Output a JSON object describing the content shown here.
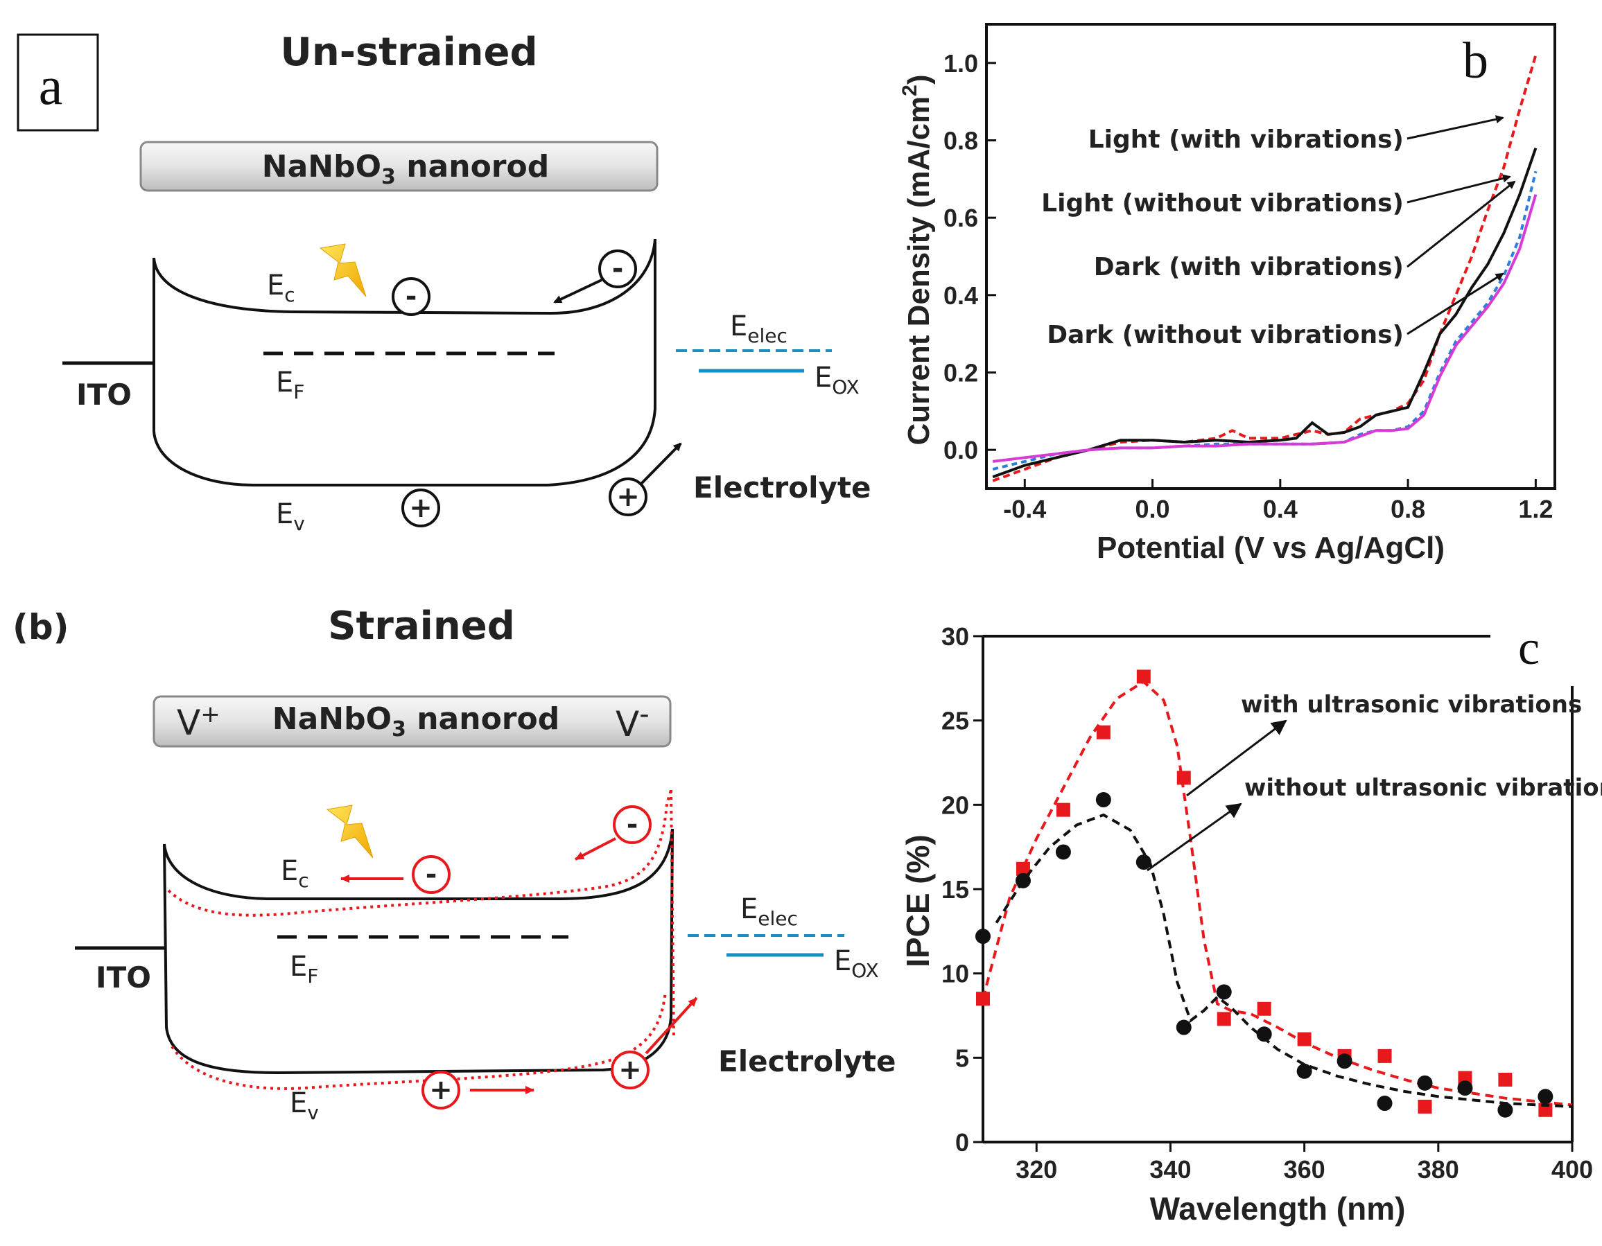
{
  "panel_a": {
    "letter": "a",
    "title": "Un-strained",
    "rod_label_pre": "NaNbO",
    "rod_label_sub": "3",
    "rod_label_post": " nanorod",
    "ito": "ITO",
    "ec": "E",
    "ec_sub": "c",
    "ef": "E",
    "ef_sub": "F",
    "ev": "E",
    "ev_sub": "v",
    "eelec": "E",
    "eelec_sub": "elec",
    "eox": "E",
    "eox_sub": "OX",
    "electrolyte": "Electrolyte",
    "minus": "-",
    "plus": "+"
  },
  "panel_bstrained": {
    "letter": "(b)",
    "title": "Strained",
    "v_plus": "V",
    "v_plus_sup": "+",
    "v_minus": "V",
    "v_minus_sup": "-",
    "rod_label_pre": "NaNbO",
    "rod_label_sub": "3",
    "rod_label_post": " nanorod",
    "ito": "ITO",
    "ec": "E",
    "ec_sub": "c",
    "ef": "E",
    "ef_sub": "F",
    "ev": "E",
    "ev_sub": "v",
    "eelec": "E",
    "eelec_sub": "elec",
    "eox": "E",
    "eox_sub": "OX",
    "electrolyte": "Electrolyte",
    "minus": "-",
    "plus": "+"
  },
  "chart_data": [
    {
      "id": "b",
      "letter": "b",
      "type": "line",
      "xlabel": "Potential (V vs Ag/AgCl)",
      "ylabel_pre": "Current Density (mA/cm",
      "ylabel_sup": "2",
      "ylabel_post": ")",
      "xlim": [
        -0.52,
        1.26
      ],
      "ylim": [
        -0.1,
        1.1
      ],
      "xticks": [
        -0.4,
        0.0,
        0.4,
        0.8,
        1.2
      ],
      "xtick_labels": [
        "-0.4",
        "0.0",
        "0.4",
        "0.8",
        "1.2"
      ],
      "yticks": [
        0.0,
        0.2,
        0.4,
        0.6,
        0.8,
        1.0
      ],
      "ytick_labels": [
        "0.0",
        "0.2",
        "0.4",
        "0.6",
        "0.8",
        "1.0"
      ],
      "series": [
        {
          "name": "Light (with vibrations)",
          "color": "#e8191c",
          "dash": "10,6",
          "x": [
            -0.5,
            -0.4,
            -0.3,
            -0.2,
            -0.1,
            0.0,
            0.1,
            0.2,
            0.25,
            0.3,
            0.35,
            0.4,
            0.45,
            0.5,
            0.55,
            0.6,
            0.65,
            0.7,
            0.75,
            0.8,
            0.85,
            0.9,
            0.95,
            1.0,
            1.05,
            1.1,
            1.15,
            1.2
          ],
          "y": [
            -0.08,
            -0.05,
            -0.02,
            0.0,
            0.02,
            0.025,
            0.02,
            0.03,
            0.05,
            0.03,
            0.03,
            0.03,
            0.04,
            0.05,
            0.04,
            0.045,
            0.08,
            0.09,
            0.1,
            0.12,
            0.18,
            0.3,
            0.4,
            0.5,
            0.62,
            0.73,
            0.88,
            1.02
          ]
        },
        {
          "name": "Light (without vibrations)",
          "color": "#111111",
          "dash": "",
          "x": [
            -0.5,
            -0.4,
            -0.3,
            -0.2,
            -0.1,
            0.0,
            0.1,
            0.2,
            0.3,
            0.4,
            0.45,
            0.5,
            0.55,
            0.6,
            0.65,
            0.7,
            0.75,
            0.8,
            0.85,
            0.9,
            0.95,
            1.0,
            1.05,
            1.1,
            1.15,
            1.2
          ],
          "y": [
            -0.07,
            -0.04,
            -0.02,
            0.0,
            0.025,
            0.025,
            0.02,
            0.025,
            0.02,
            0.025,
            0.03,
            0.07,
            0.04,
            0.045,
            0.06,
            0.09,
            0.1,
            0.11,
            0.2,
            0.3,
            0.35,
            0.42,
            0.48,
            0.56,
            0.66,
            0.78
          ]
        },
        {
          "name": "Dark (with vibrations)",
          "color": "#2f7fd8",
          "dash": "8,6",
          "x": [
            -0.5,
            -0.4,
            -0.3,
            -0.2,
            -0.1,
            0.0,
            0.1,
            0.2,
            0.3,
            0.4,
            0.5,
            0.6,
            0.65,
            0.7,
            0.75,
            0.8,
            0.85,
            0.9,
            0.95,
            1.0,
            1.05,
            1.1,
            1.15,
            1.2
          ],
          "y": [
            -0.05,
            -0.03,
            -0.01,
            0.0,
            0.005,
            0.005,
            0.01,
            0.015,
            0.015,
            0.015,
            0.015,
            0.02,
            0.04,
            0.05,
            0.05,
            0.06,
            0.1,
            0.2,
            0.28,
            0.33,
            0.38,
            0.45,
            0.55,
            0.72
          ]
        },
        {
          "name": "Dark (without vibrations)",
          "color": "#d63bd6",
          "dash": "",
          "x": [
            -0.5,
            -0.4,
            -0.3,
            -0.2,
            -0.1,
            0.0,
            0.1,
            0.2,
            0.3,
            0.4,
            0.5,
            0.6,
            0.65,
            0.7,
            0.75,
            0.8,
            0.85,
            0.9,
            0.95,
            1.0,
            1.05,
            1.1,
            1.15,
            1.2
          ],
          "y": [
            -0.03,
            -0.02,
            -0.01,
            0.0,
            0.005,
            0.005,
            0.01,
            0.01,
            0.015,
            0.015,
            0.015,
            0.02,
            0.035,
            0.05,
            0.05,
            0.055,
            0.09,
            0.19,
            0.27,
            0.32,
            0.37,
            0.43,
            0.52,
            0.66
          ]
        }
      ]
    },
    {
      "id": "c",
      "letter": "c",
      "type": "scatter",
      "xlabel": "Wavelength (nm)",
      "ylabel": "IPCE (%)",
      "xlim": [
        312,
        400
      ],
      "ylim": [
        0,
        30
      ],
      "xticks": [
        320,
        340,
        360,
        380,
        400
      ],
      "xtick_labels": [
        "320",
        "340",
        "360",
        "380",
        "400"
      ],
      "yticks": [
        0,
        5,
        10,
        15,
        20,
        25,
        30
      ],
      "ytick_labels": [
        "0",
        "5",
        "10",
        "15",
        "20",
        "25",
        "30"
      ],
      "series": [
        {
          "name": "with ultrasonic vibrations",
          "color": "#e8191c",
          "marker": "square",
          "x": [
            312,
            318,
            324,
            330,
            336,
            342,
            348,
            354,
            360,
            366,
            372,
            378,
            384,
            390,
            396
          ],
          "y": [
            8.5,
            16.2,
            19.7,
            24.3,
            27.6,
            21.6,
            7.3,
            7.9,
            6.1,
            5.1,
            5.1,
            2.1,
            3.8,
            3.7,
            1.9
          ],
          "fit_x": [
            312,
            316,
            320,
            324,
            328,
            332,
            336,
            339,
            341,
            343,
            345,
            347,
            349,
            352,
            356,
            360,
            365,
            370,
            375,
            380,
            385,
            390,
            395,
            400
          ],
          "fit_y": [
            8.5,
            14.5,
            18.0,
            21.0,
            24.0,
            26.3,
            27.3,
            26.2,
            23.5,
            18.0,
            12.0,
            8.2,
            7.8,
            7.6,
            6.8,
            5.9,
            5.0,
            4.3,
            3.7,
            3.2,
            2.9,
            2.6,
            2.4,
            2.2
          ]
        },
        {
          "name": "without ultrasonic vibrations",
          "color": "#111111",
          "marker": "circle",
          "x": [
            312,
            318,
            324,
            330,
            336,
            342,
            348,
            354,
            360,
            366,
            372,
            378,
            384,
            390,
            396
          ],
          "y": [
            12.2,
            15.5,
            17.2,
            20.3,
            16.6,
            6.8,
            8.9,
            6.4,
            4.2,
            4.8,
            2.3,
            3.5,
            3.2,
            1.9,
            2.7
          ],
          "fit_x": [
            314,
            318,
            322,
            326,
            330,
            334,
            337,
            339,
            341,
            343,
            345,
            347,
            349,
            352,
            356,
            360,
            365,
            370,
            375,
            380,
            385,
            390,
            395,
            400
          ],
          "fit_y": [
            13.0,
            15.5,
            17.5,
            18.8,
            19.4,
            18.5,
            16.5,
            13.5,
            9.5,
            7.2,
            7.8,
            8.6,
            8.0,
            6.8,
            5.5,
            4.6,
            3.9,
            3.4,
            3.0,
            2.7,
            2.5,
            2.3,
            2.2,
            2.1
          ]
        }
      ]
    }
  ]
}
